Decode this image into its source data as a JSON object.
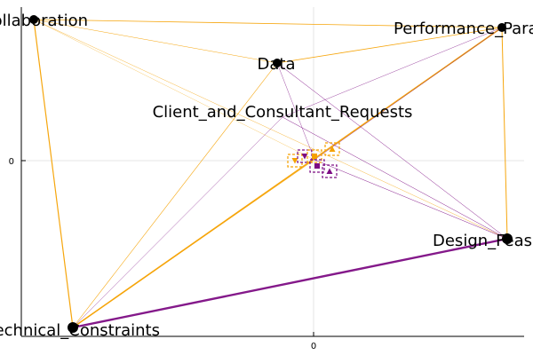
{
  "axes": {
    "x_tick": "0",
    "y_tick": "0",
    "grid": true
  },
  "colors": {
    "orange": "#f5a100",
    "purple": "#7d0d84",
    "node": "#000000",
    "grid": "#e6e6e6"
  },
  "nodes": [
    {
      "id": "collaboration",
      "label": "Collaboration"
    },
    {
      "id": "performance",
      "label": "Performance_Parameters"
    },
    {
      "id": "data",
      "label": "Data"
    },
    {
      "id": "client",
      "label": "Client_and_Consultant_Requests"
    },
    {
      "id": "design",
      "label": "Design_Feasibility"
    },
    {
      "id": "technical",
      "label": "Technical_Constraints"
    }
  ],
  "edges": [
    {
      "from": "collaboration",
      "to": "technical",
      "color": "orange",
      "weight": 1.2
    },
    {
      "from": "collaboration",
      "to": "performance",
      "color": "orange",
      "weight": 0.8
    },
    {
      "from": "collaboration",
      "to": "data",
      "color": "orange",
      "weight": 0.5
    },
    {
      "from": "collaboration",
      "to": "design",
      "color": "orange",
      "weight": 0.4
    },
    {
      "from": "collaboration",
      "to": "center",
      "color": "orange",
      "weight": 0.3
    },
    {
      "from": "performance",
      "to": "data",
      "color": "orange",
      "weight": 0.8
    },
    {
      "from": "performance",
      "to": "technical",
      "color": "orange",
      "weight": 1.6
    },
    {
      "from": "performance",
      "to": "design",
      "color": "orange",
      "weight": 1.0
    },
    {
      "from": "performance",
      "to": "client",
      "color": "purple",
      "weight": 0.4
    },
    {
      "from": "performance",
      "to": "center",
      "color": "purple",
      "weight": 0.4
    },
    {
      "from": "data",
      "to": "technical",
      "color": "orange",
      "weight": 0.6
    },
    {
      "from": "data",
      "to": "design",
      "color": "purple",
      "weight": 0.5
    },
    {
      "from": "data",
      "to": "center",
      "color": "purple",
      "weight": 0.4
    },
    {
      "from": "client",
      "to": "design",
      "color": "purple",
      "weight": 0.5
    },
    {
      "from": "client",
      "to": "technical",
      "color": "purple",
      "weight": 0.4
    },
    {
      "from": "design",
      "to": "technical",
      "color": "purple",
      "weight": 2.4
    },
    {
      "from": "design",
      "to": "center",
      "color": "purple",
      "weight": 0.5
    },
    {
      "from": "technical",
      "to": "center",
      "color": "orange",
      "weight": 0.5
    }
  ],
  "center_markers": [
    {
      "shape": "triangle-down",
      "color": "orange"
    },
    {
      "shape": "triangle-down",
      "color": "purple"
    },
    {
      "shape": "square",
      "color": "orange"
    },
    {
      "shape": "triangle-up",
      "color": "orange"
    },
    {
      "shape": "square",
      "color": "purple"
    },
    {
      "shape": "triangle-up",
      "color": "purple"
    }
  ]
}
